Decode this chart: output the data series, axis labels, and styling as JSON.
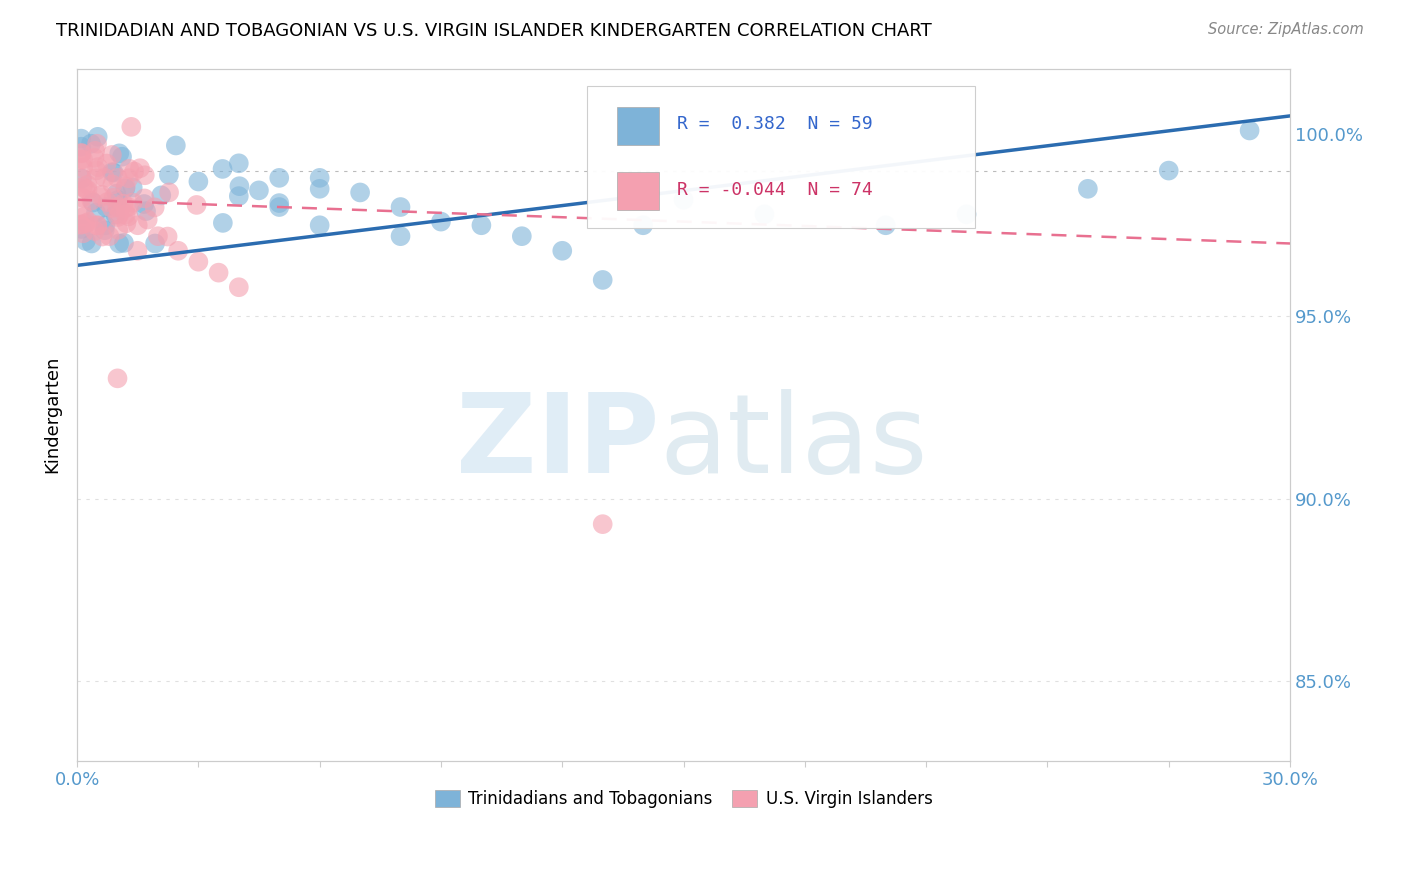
{
  "title": "TRINIDADIAN AND TOBAGONIAN VS U.S. VIRGIN ISLANDER KINDERGARTEN CORRELATION CHART",
  "source_text": "Source: ZipAtlas.com",
  "ylabel": "Kindergarten",
  "x_min": 0.0,
  "x_max": 0.3,
  "y_min": 0.828,
  "y_max": 1.018,
  "y_ticks": [
    0.85,
    0.9,
    0.95,
    1.0
  ],
  "y_tick_labels": [
    "85.0%",
    "90.0%",
    "95.0%",
    "100.0%"
  ],
  "x_ticks": [
    0.0,
    0.03,
    0.06,
    0.09,
    0.12,
    0.15,
    0.18,
    0.21,
    0.24,
    0.27,
    0.3
  ],
  "legend_R_blue": "0.382",
  "legend_N_blue": "59",
  "legend_R_pink": "-0.044",
  "legend_N_pink": "74",
  "blue_color": "#7EB3D8",
  "pink_color": "#F4A0B0",
  "trend_blue_color": "#2B6CB0",
  "trend_pink_color": "#E87090",
  "legend_label_blue": "Trinidadians and Tobagonians",
  "legend_label_pink": "U.S. Virgin Islanders",
  "blue_trend_x": [
    0.0,
    0.3
  ],
  "blue_trend_y": [
    0.964,
    1.005
  ],
  "pink_trend_x": [
    0.0,
    0.3
  ],
  "pink_trend_y": [
    0.982,
    0.97
  ],
  "hline_y": 0.99
}
